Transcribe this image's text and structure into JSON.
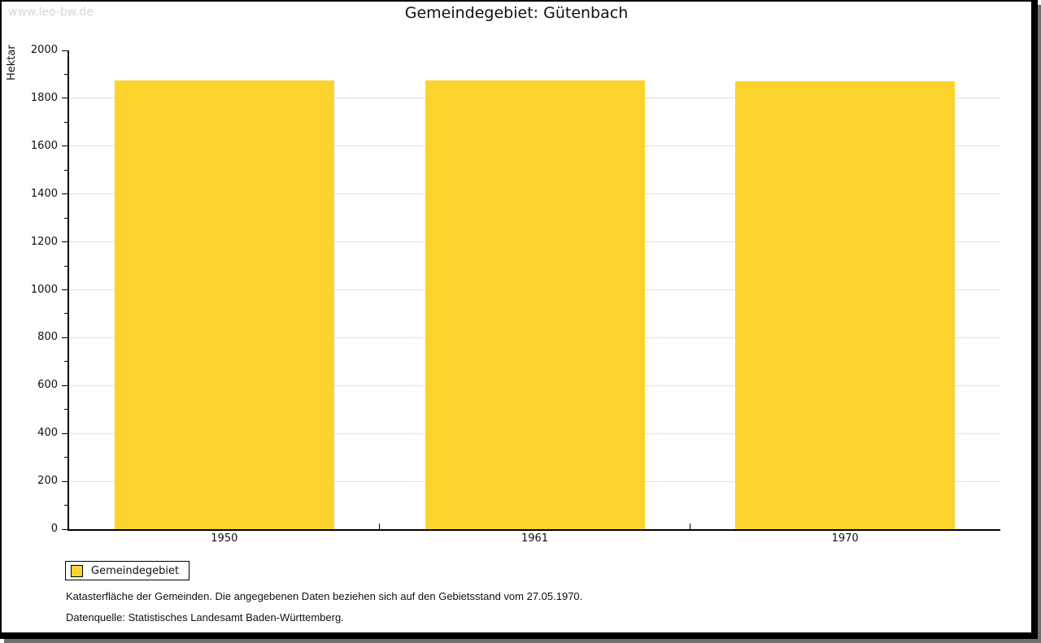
{
  "watermark": "www.leo-bw.de",
  "title": "Gemeindegebiet: Gütenbach",
  "chart_data": {
    "type": "bar",
    "title": "Gemeindegebiet: Gütenbach",
    "categories": [
      "1950",
      "1961",
      "1970"
    ],
    "series": [
      {
        "name": "Gemeindegebiet",
        "values": [
          1874,
          1874,
          1871
        ]
      }
    ],
    "xlabel": "",
    "ylabel": "Hektar",
    "ylim": [
      0,
      2000
    ],
    "y_major_step": 200,
    "y_minor_step": 100,
    "grid": "horizontal-major",
    "legend_position": "bottom-left",
    "bar_color": "#fcd32c"
  },
  "legend": {
    "items": [
      {
        "label": "Gemeindegebiet",
        "color": "#fcd32c"
      }
    ]
  },
  "footnotes": [
    "Katasterfläche der Gemeinden. Die angegebenen Daten beziehen sich auf den Gebietsstand vom 27.05.1970.",
    "Datenquelle: Statistisches Landesamt Baden-Württemberg."
  ],
  "colors": {
    "bar": "#fcd32c",
    "gridline": "#e0e0e0",
    "axis": "#000000",
    "text": "#111111",
    "watermark": "#d6d6d6",
    "frame_shadow": "#6f6f6f"
  }
}
